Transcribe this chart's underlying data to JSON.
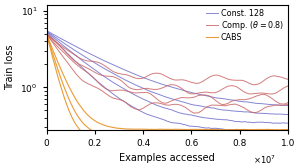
{
  "xlabel": "Examples accessed",
  "ylabel": "Train loss",
  "xlim": [
    0,
    10000000.0
  ],
  "ylim": [
    0.28,
    12
  ],
  "legend": [
    {
      "label": "Const. 128",
      "color": "#7070cc"
    },
    {
      "label": "Comp. ($\\theta = 0.8$)",
      "color": "#cc6666"
    },
    {
      "label": "CABS",
      "color": "#e89020"
    }
  ],
  "blue_color": "#7070cc",
  "red_color": "#cc6666",
  "orange_color": "#e89020",
  "seed": 3
}
